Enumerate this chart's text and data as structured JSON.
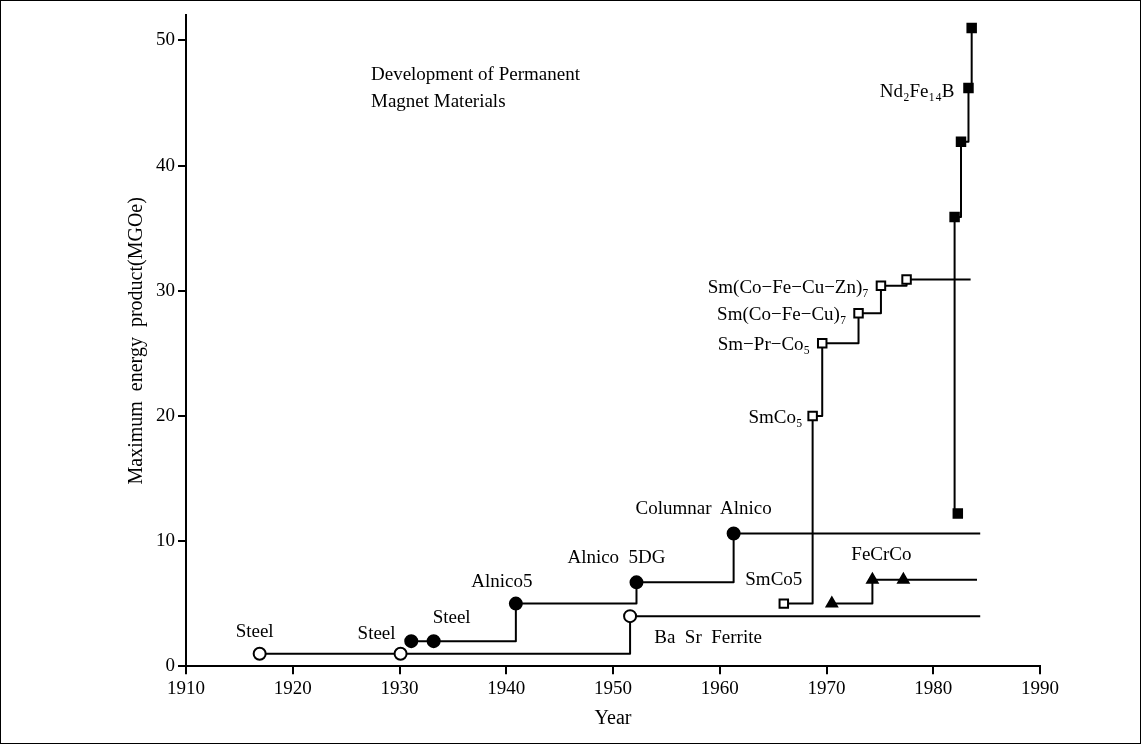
{
  "chart_data": {
    "type": "step",
    "title": "Development of Permanent Magnet Materials",
    "xlabel": "Year",
    "ylabel": "Maximum  energy  product(MGOe)",
    "xlim": [
      1910,
      1990
    ],
    "xticks": [
      1910,
      1920,
      1930,
      1940,
      1950,
      1960,
      1970,
      1980,
      1990
    ],
    "ylim": [
      0,
      52
    ],
    "yticks": [
      0,
      10,
      20,
      30,
      40,
      50
    ],
    "grid": false,
    "legend": false,
    "series": [
      {
        "color": "#000000",
        "marker": "none",
        "x": [
          1916.9,
          1930.1,
          1951.6,
          1984.4
        ],
        "values": [
          1,
          1,
          4,
          4
        ]
      },
      {
        "type": "scatter",
        "color": "#ffffff",
        "marker": "circle",
        "x": [
          1916.9,
          1930.1,
          1951.6
        ],
        "values": [
          1,
          1,
          4
        ]
      },
      {
        "color": "#000000",
        "marker": "none",
        "x": [
          1931.1,
          1933.2,
          1940.9,
          1952.2,
          1961.3,
          1984.4
        ],
        "values": [
          2,
          2,
          5,
          6.7,
          10.6,
          10.6
        ]
      },
      {
        "type": "scatter",
        "color": "#000000",
        "marker": "circle",
        "x": [
          1931.1,
          1933.2,
          1940.9,
          1952.2,
          1961.3
        ],
        "values": [
          2,
          2,
          5,
          6.7,
          10.6
        ]
      },
      {
        "color": "#000000",
        "marker": "none",
        "x": [
          1966.0,
          1968.7,
          1969.6,
          1973.0,
          1975.1,
          1977.5,
          1983.5
        ],
        "values": [
          5,
          20,
          25.8,
          28.2,
          30.4,
          30.9,
          30.9
        ]
      },
      {
        "type": "scatter",
        "color": "#ffffff",
        "marker": "square",
        "x": [
          1966.0,
          1968.7,
          1969.6,
          1973.0,
          1975.1,
          1977.5
        ],
        "values": [
          5,
          20,
          25.8,
          28.2,
          30.4,
          30.9
        ]
      },
      {
        "color": "#000000",
        "marker": "none",
        "x": [
          1970.5,
          1974.3,
          1977.2,
          1984.1
        ],
        "values": [
          5,
          6.9,
          6.9,
          6.9
        ]
      },
      {
        "type": "scatter",
        "color": "#000000",
        "marker": "triangle",
        "x": [
          1970.5,
          1974.3,
          1977.2
        ],
        "values": [
          5,
          6.9,
          6.9
        ]
      },
      {
        "color": "#000000",
        "marker": "none",
        "x": [
          1982.3,
          1982.0,
          1982.6,
          1983.3,
          1983.6
        ],
        "values": [
          12.2,
          35.9,
          41.9,
          46.2,
          51
        ]
      },
      {
        "type": "scatter",
        "color": "#000000",
        "marker": "square",
        "x": [
          1982.3,
          1982.0,
          1982.6,
          1983.3,
          1983.6
        ],
        "values": [
          12.2,
          35.9,
          41.9,
          46.2,
          51
        ]
      }
    ],
    "annotations": [
      {
        "text": "Steel",
        "x": 1916.9,
        "y": 1
      },
      {
        "text": "Steel",
        "x": 1930.1,
        "y": 1
      },
      {
        "text": "Steel",
        "x": 1933.2,
        "y": 2
      },
      {
        "text": "Alnico5",
        "x": 1940.9,
        "y": 5
      },
      {
        "text": "Alnico  5DG",
        "x": 1952.2,
        "y": 6.7
      },
      {
        "text": "Columnar  Alnico",
        "x": 1961.3,
        "y": 10.6
      },
      {
        "text": "SmCo5",
        "x": 1966.0,
        "y": 5
      },
      {
        "text": "FeCrCo",
        "x": 1974.3,
        "y": 6.9
      },
      {
        "text": "Ba  Sr  Ferrite",
        "x": 1951.6,
        "y": 4
      },
      {
        "text": "SmCo₅",
        "x": 1968.7,
        "y": 20
      },
      {
        "text": "Sm−Pr−Co₅",
        "x": 1969.6,
        "y": 25.8
      },
      {
        "text": "Sm(Co−Fe−Cu)₇",
        "x": 1973.0,
        "y": 28.2
      },
      {
        "text": "Sm(Co−Fe−Cu−Zn)₇",
        "x": 1975.1,
        "y": 30.4
      },
      {
        "text": "Nd₂Fe₁₄B",
        "x": 1983.3,
        "y": 46.2
      }
    ]
  }
}
